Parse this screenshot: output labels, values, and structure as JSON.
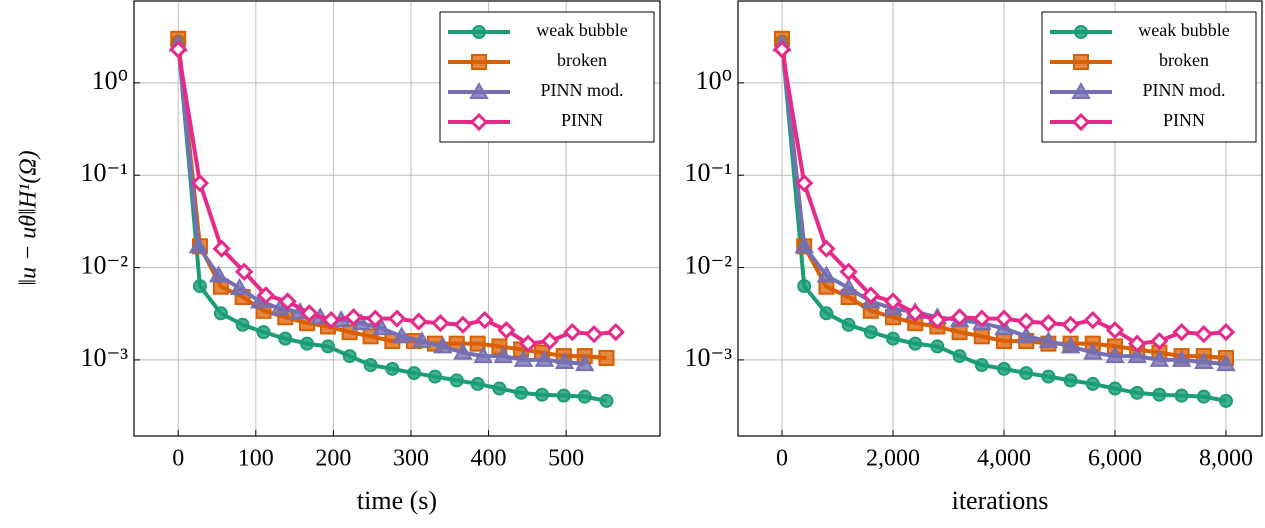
{
  "chart_data": [
    {
      "type": "line",
      "xlabel": "time (s)",
      "ylabel": "‖u − uθ‖H¹(Ω)",
      "xlim": [
        -57,
        621
      ],
      "ylim": [
        0.00015,
        7.7
      ],
      "log_y": true,
      "grid": true,
      "legend": "upper right",
      "xticks": [
        0,
        100,
        200,
        300,
        400,
        500
      ],
      "yticks": [
        {
          "value": 1,
          "label": "10⁰"
        },
        {
          "value": 0.1,
          "label": "10⁻¹"
        },
        {
          "value": 0.01,
          "label": "10⁻²"
        },
        {
          "value": 0.001,
          "label": "10⁻³"
        }
      ],
      "series": [
        {
          "name": "weak bubble",
          "color": "#1b9e77",
          "marker": "circle",
          "x": [
            0,
            28,
            55,
            83,
            110,
            138,
            166,
            193,
            221,
            248,
            276,
            304,
            331,
            359,
            386,
            414,
            442,
            469,
            497,
            524,
            552
          ],
          "values": [
            2.8,
            0.0063,
            0.0032,
            0.0024,
            0.002,
            0.0017,
            0.0015,
            0.0014,
            0.0011,
            0.00088,
            0.0008,
            0.00072,
            0.00066,
            0.0006,
            0.00055,
            0.00049,
            0.00044,
            0.00042,
            0.00041,
            0.0004,
            0.00036
          ]
        },
        {
          "name": "broken",
          "color": "#d95f02",
          "marker": "square",
          "x": [
            0,
            28,
            55,
            83,
            110,
            138,
            166,
            193,
            221,
            248,
            276,
            304,
            331,
            359,
            386,
            414,
            442,
            469,
            497,
            524,
            552
          ],
          "values": [
            3.0,
            0.017,
            0.0062,
            0.0048,
            0.0034,
            0.0029,
            0.0025,
            0.0023,
            0.002,
            0.0018,
            0.0016,
            0.0016,
            0.0015,
            0.0015,
            0.0015,
            0.0014,
            0.0013,
            0.0012,
            0.0011,
            0.0011,
            0.00105
          ]
        },
        {
          "name": "PINN mod.",
          "color": "#7570b3",
          "marker": "triangle",
          "x": [
            0,
            26,
            52,
            79,
            105,
            131,
            157,
            183,
            210,
            236,
            262,
            288,
            314,
            341,
            367,
            393,
            419,
            445,
            472,
            498,
            524
          ],
          "values": [
            2.6,
            0.017,
            0.0082,
            0.006,
            0.0043,
            0.0036,
            0.0033,
            0.0029,
            0.0027,
            0.0025,
            0.0022,
            0.0018,
            0.0016,
            0.0014,
            0.0012,
            0.0011,
            0.0011,
            0.001,
            0.001,
            0.00095,
            0.0009
          ]
        },
        {
          "name": "PINN",
          "color": "#e7298a",
          "marker": "diamond",
          "x": [
            0,
            28,
            56,
            85,
            113,
            141,
            169,
            197,
            226,
            254,
            282,
            310,
            338,
            367,
            395,
            423,
            451,
            479,
            508,
            536,
            564
          ],
          "values": [
            2.3,
            0.082,
            0.016,
            0.009,
            0.005,
            0.0043,
            0.0032,
            0.0027,
            0.0029,
            0.0028,
            0.0028,
            0.0026,
            0.0025,
            0.0024,
            0.0027,
            0.0021,
            0.0015,
            0.0016,
            0.002,
            0.0019,
            0.002
          ]
        }
      ]
    },
    {
      "type": "line",
      "xlabel": "iterations",
      "xlim": [
        -793,
        8649
      ],
      "ylim": [
        0.00015,
        7.7
      ],
      "log_y": true,
      "grid": true,
      "legend": "upper right",
      "xticks": [
        0,
        {
          "value": 2000,
          "label": "2,000"
        },
        {
          "value": 4000,
          "label": "4,000"
        },
        {
          "value": 6000,
          "label": "6,000"
        },
        {
          "value": 8000,
          "label": "8,000"
        }
      ],
      "yticks": [
        {
          "value": 1,
          "label": "10⁰"
        },
        {
          "value": 0.1,
          "label": "10⁻¹"
        },
        {
          "value": 0.01,
          "label": "10⁻²"
        },
        {
          "value": 0.001,
          "label": "10⁻³"
        }
      ],
      "series": [
        {
          "name": "weak bubble",
          "color": "#1b9e77",
          "marker": "circle",
          "x": [
            0,
            400,
            800,
            1200,
            1600,
            2000,
            2400,
            2800,
            3200,
            3600,
            4000,
            4400,
            4800,
            5200,
            5600,
            6000,
            6400,
            6800,
            7200,
            7600,
            8000
          ],
          "values": [
            2.8,
            0.0063,
            0.0032,
            0.0024,
            0.002,
            0.0017,
            0.0015,
            0.0014,
            0.0011,
            0.00088,
            0.0008,
            0.00072,
            0.00066,
            0.0006,
            0.00055,
            0.00049,
            0.00044,
            0.00042,
            0.00041,
            0.0004,
            0.00036
          ]
        },
        {
          "name": "broken",
          "color": "#d95f02",
          "marker": "square",
          "x": [
            0,
            400,
            800,
            1200,
            1600,
            2000,
            2400,
            2800,
            3200,
            3600,
            4000,
            4400,
            4800,
            5200,
            5600,
            6000,
            6400,
            6800,
            7200,
            7600,
            8000
          ],
          "values": [
            3.0,
            0.017,
            0.0062,
            0.0048,
            0.0034,
            0.0029,
            0.0025,
            0.0023,
            0.002,
            0.0018,
            0.0016,
            0.0016,
            0.0015,
            0.0015,
            0.0015,
            0.0014,
            0.0013,
            0.0012,
            0.0011,
            0.0011,
            0.00105
          ]
        },
        {
          "name": "PINN mod.",
          "color": "#7570b3",
          "marker": "triangle",
          "x": [
            0,
            400,
            800,
            1200,
            1600,
            2000,
            2400,
            2800,
            3200,
            3600,
            4000,
            4400,
            4800,
            5200,
            5600,
            6000,
            6400,
            6800,
            7200,
            7600,
            8000
          ],
          "values": [
            2.6,
            0.017,
            0.0082,
            0.006,
            0.0043,
            0.0036,
            0.0033,
            0.0029,
            0.0027,
            0.0025,
            0.0022,
            0.0018,
            0.0016,
            0.0014,
            0.0012,
            0.0011,
            0.0011,
            0.001,
            0.001,
            0.00095,
            0.0009
          ]
        },
        {
          "name": "PINN",
          "color": "#e7298a",
          "marker": "diamond",
          "x": [
            0,
            400,
            800,
            1200,
            1600,
            2000,
            2400,
            2800,
            3200,
            3600,
            4000,
            4400,
            4800,
            5200,
            5600,
            6000,
            6400,
            6800,
            7200,
            7600,
            8000
          ],
          "values": [
            2.3,
            0.082,
            0.016,
            0.009,
            0.005,
            0.0043,
            0.0032,
            0.0027,
            0.0029,
            0.0028,
            0.0028,
            0.0026,
            0.0025,
            0.0024,
            0.0027,
            0.0021,
            0.0015,
            0.0016,
            0.002,
            0.0019,
            0.002
          ]
        }
      ]
    }
  ]
}
